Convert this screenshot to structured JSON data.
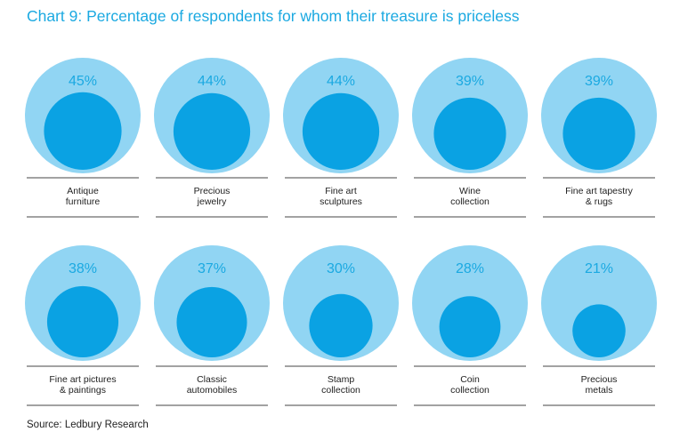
{
  "title": "Chart 9: Percentage of respondents for whom their treasure is priceless",
  "source": "Source: Ledbury Research",
  "colors": {
    "outer_circle": "#91d5f3",
    "inner_circle": "#0aa2e3",
    "percent_text": "#1ba9e1",
    "rule": "#444444"
  },
  "chart_data": {
    "type": "proportional-circles",
    "title": "Chart 9: Percentage of respondents for whom their treasure is priceless",
    "unit": "%",
    "ylim": [
      0,
      100
    ],
    "items": [
      {
        "label": [
          "Antique",
          "furniture"
        ],
        "value": 45,
        "display": "45%"
      },
      {
        "label": [
          "Precious",
          "jewelry"
        ],
        "value": 44,
        "display": "44%"
      },
      {
        "label": [
          "Fine art",
          "sculptures"
        ],
        "value": 44,
        "display": "44%"
      },
      {
        "label": [
          "Wine",
          "collection"
        ],
        "value": 39,
        "display": "39%"
      },
      {
        "label": [
          "Fine art tapestry",
          "& rugs"
        ],
        "value": 39,
        "display": "39%"
      },
      {
        "label": [
          "Fine art pictures",
          "& paintings"
        ],
        "value": 38,
        "display": "38%"
      },
      {
        "label": [
          "Classic",
          "automobiles"
        ],
        "value": 37,
        "display": "37%"
      },
      {
        "label": [
          "Stamp",
          "collection"
        ],
        "value": 30,
        "display": "30%"
      },
      {
        "label": [
          "Coin",
          "collection"
        ],
        "value": 28,
        "display": "28%"
      },
      {
        "label": [
          "Precious",
          "metals"
        ],
        "value": 21,
        "display": "21%"
      }
    ]
  }
}
